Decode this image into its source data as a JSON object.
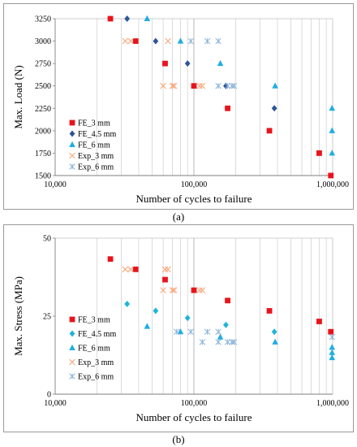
{
  "labels": {
    "a": "(a)",
    "b": "(b)"
  },
  "chart_data": [
    {
      "type": "scatter",
      "panel": "a",
      "xscale": "log",
      "xlim": [
        10000,
        1000000
      ],
      "ylim": [
        1500,
        3250
      ],
      "xticks": [
        10000,
        100000,
        1000000
      ],
      "xtick_labels": [
        "10,000",
        "100,000",
        "1,000,000"
      ],
      "yticks": [
        1500,
        1750,
        2000,
        2250,
        2500,
        2750,
        3000,
        3250
      ],
      "ytick_labels": [
        "1500",
        "1750",
        "2000",
        "2250",
        "2500",
        "2750",
        "3000",
        "3250"
      ],
      "xlabel": "Number of cycles to failure",
      "ylabel": "Max. Load (N)",
      "grid": "vertical",
      "legend_position": "bottom-left",
      "series": [
        {
          "name": "FE_3 mm",
          "marker": "square",
          "color": "#e8141b",
          "points": [
            [
              25000,
              3250
            ],
            [
              38000,
              3000
            ],
            [
              62000,
              2750
            ],
            [
              100000,
              2500
            ],
            [
              175000,
              2250
            ],
            [
              350000,
              2000
            ],
            [
              800000,
              1750
            ],
            [
              970000,
              1500
            ]
          ]
        },
        {
          "name": "FE_4.5 mm",
          "marker": "diamond",
          "color": "#2f5597",
          "points": [
            [
              33000,
              3250
            ],
            [
              53000,
              3000
            ],
            [
              90000,
              2750
            ],
            [
              170000,
              2500
            ],
            [
              380000,
              2250
            ]
          ]
        },
        {
          "name": "FE_6 mm",
          "marker": "triangle",
          "color": "#1faee0",
          "points": [
            [
              46000,
              3250
            ],
            [
              80000,
              3000
            ],
            [
              155000,
              2750
            ],
            [
              385000,
              2500
            ],
            [
              990000,
              2250
            ],
            [
              990000,
              2000
            ],
            [
              990000,
              1750
            ]
          ]
        },
        {
          "name": "Exp_3 mm",
          "marker": "x",
          "color": "#f5a77a",
          "points": [
            [
              32000,
              3000
            ],
            [
              35000,
              3000
            ],
            [
              65000,
              3000
            ],
            [
              60000,
              2500
            ],
            [
              70000,
              2500
            ],
            [
              72000,
              2500
            ],
            [
              110000,
              2500
            ],
            [
              115000,
              2500
            ]
          ]
        },
        {
          "name": "Exp_6 mm",
          "marker": "star",
          "color": "#8ab4dc",
          "points": [
            [
              95000,
              3000
            ],
            [
              125000,
              3000
            ],
            [
              150000,
              3000
            ],
            [
              150000,
              2500
            ],
            [
              175000,
              2500
            ],
            [
              188000,
              2500
            ],
            [
              195000,
              2500
            ]
          ]
        }
      ]
    },
    {
      "type": "scatter",
      "panel": "b",
      "xscale": "log",
      "xlim": [
        10000,
        1000000
      ],
      "ylim": [
        0,
        50
      ],
      "xticks": [
        10000,
        100000,
        1000000
      ],
      "xtick_labels": [
        "10,000",
        "100,000",
        "1,000,000"
      ],
      "yticks": [
        0,
        25,
        50
      ],
      "ytick_labels": [
        "0",
        "25",
        "50"
      ],
      "xlabel": "Number of cycles to failure",
      "ylabel": "Max. Stress (MPa)",
      "grid": "vertical",
      "legend_position": "bottom-left",
      "series": [
        {
          "name": "FE_3 mm",
          "marker": "square",
          "color": "#e8141b",
          "points": [
            [
              25000,
              43.3
            ],
            [
              38000,
              40
            ],
            [
              62000,
              36.7
            ],
            [
              100000,
              33.3
            ],
            [
              175000,
              30
            ],
            [
              350000,
              26.7
            ],
            [
              800000,
              23.3
            ],
            [
              970000,
              20
            ]
          ]
        },
        {
          "name": "FE_4.5 mm",
          "marker": "diamond",
          "color": "#1fb4d8",
          "points": [
            [
              33000,
              28.9
            ],
            [
              53000,
              26.7
            ],
            [
              90000,
              24.4
            ],
            [
              170000,
              22.2
            ],
            [
              380000,
              20
            ]
          ]
        },
        {
          "name": "FE_6 mm",
          "marker": "triangle",
          "color": "#1faee0",
          "points": [
            [
              46000,
              21.7
            ],
            [
              80000,
              20
            ],
            [
              155000,
              18.3
            ],
            [
              385000,
              16.7
            ],
            [
              990000,
              15
            ],
            [
              990000,
              13.3
            ],
            [
              990000,
              11.7
            ]
          ]
        },
        {
          "name": "Exp_3 mm",
          "marker": "x",
          "color": "#f5a77a",
          "points": [
            [
              32000,
              40
            ],
            [
              35000,
              40
            ],
            [
              62000,
              40
            ],
            [
              65000,
              40
            ],
            [
              60000,
              33.3
            ],
            [
              70000,
              33.3
            ],
            [
              72000,
              33.3
            ],
            [
              110000,
              33.3
            ],
            [
              115000,
              33.3
            ]
          ]
        },
        {
          "name": "Exp_6 mm",
          "marker": "star",
          "color": "#8ab4dc",
          "points": [
            [
              75000,
              20
            ],
            [
              95000,
              20
            ],
            [
              125000,
              20
            ],
            [
              150000,
              20
            ],
            [
              115000,
              16.7
            ],
            [
              150000,
              16.7
            ],
            [
              175000,
              16.7
            ],
            [
              188000,
              16.7
            ],
            [
              195000,
              16.7
            ],
            [
              990000,
              18.3
            ]
          ]
        }
      ]
    }
  ]
}
